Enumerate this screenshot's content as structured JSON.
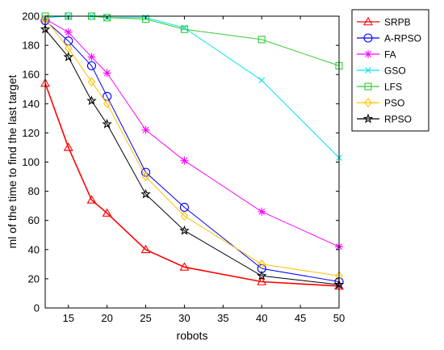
{
  "chart_data": {
    "type": "line",
    "title": "",
    "xlabel": "robots",
    "ylabel": "ml of the time to find the last target",
    "xlim": [
      12,
      50
    ],
    "ylim": [
      0,
      200
    ],
    "xticks": [
      15,
      20,
      25,
      30,
      35,
      40,
      45,
      50
    ],
    "yticks": [
      0,
      20,
      40,
      60,
      80,
      100,
      120,
      140,
      160,
      180,
      200
    ],
    "grid": false,
    "legend_position": "outside-right",
    "x": [
      12,
      15,
      18,
      20,
      25,
      30,
      40,
      50
    ],
    "series": [
      {
        "name": "SRPB",
        "color": "#ff0000",
        "marker": "triangle",
        "values": [
          154,
          110,
          74,
          65,
          40,
          28,
          18,
          15
        ]
      },
      {
        "name": "A-RPSO",
        "color": "#0000ff",
        "marker": "circle",
        "values": [
          197,
          183,
          166,
          145,
          93,
          69,
          27,
          18
        ]
      },
      {
        "name": "FA",
        "color": "#ff00ff",
        "marker": "asterisk",
        "values": [
          198,
          189,
          172,
          161,
          122,
          101,
          66,
          42
        ]
      },
      {
        "name": "GSO",
        "color": "#00e5ee",
        "marker": "x",
        "values": [
          199,
          200,
          200,
          199,
          199,
          192,
          156,
          103
        ]
      },
      {
        "name": "LFS",
        "color": "#33cc33",
        "marker": "square",
        "values": [
          200,
          200,
          200,
          199,
          198,
          191,
          184,
          166
        ]
      },
      {
        "name": "PSO",
        "color": "#ffc000",
        "marker": "diamond",
        "values": [
          198,
          178,
          155,
          140,
          90,
          63,
          30,
          22
        ]
      },
      {
        "name": "RPSO",
        "color": "#000000",
        "marker": "star",
        "values": [
          191,
          172,
          142,
          126,
          78,
          53,
          22,
          16
        ]
      }
    ]
  }
}
